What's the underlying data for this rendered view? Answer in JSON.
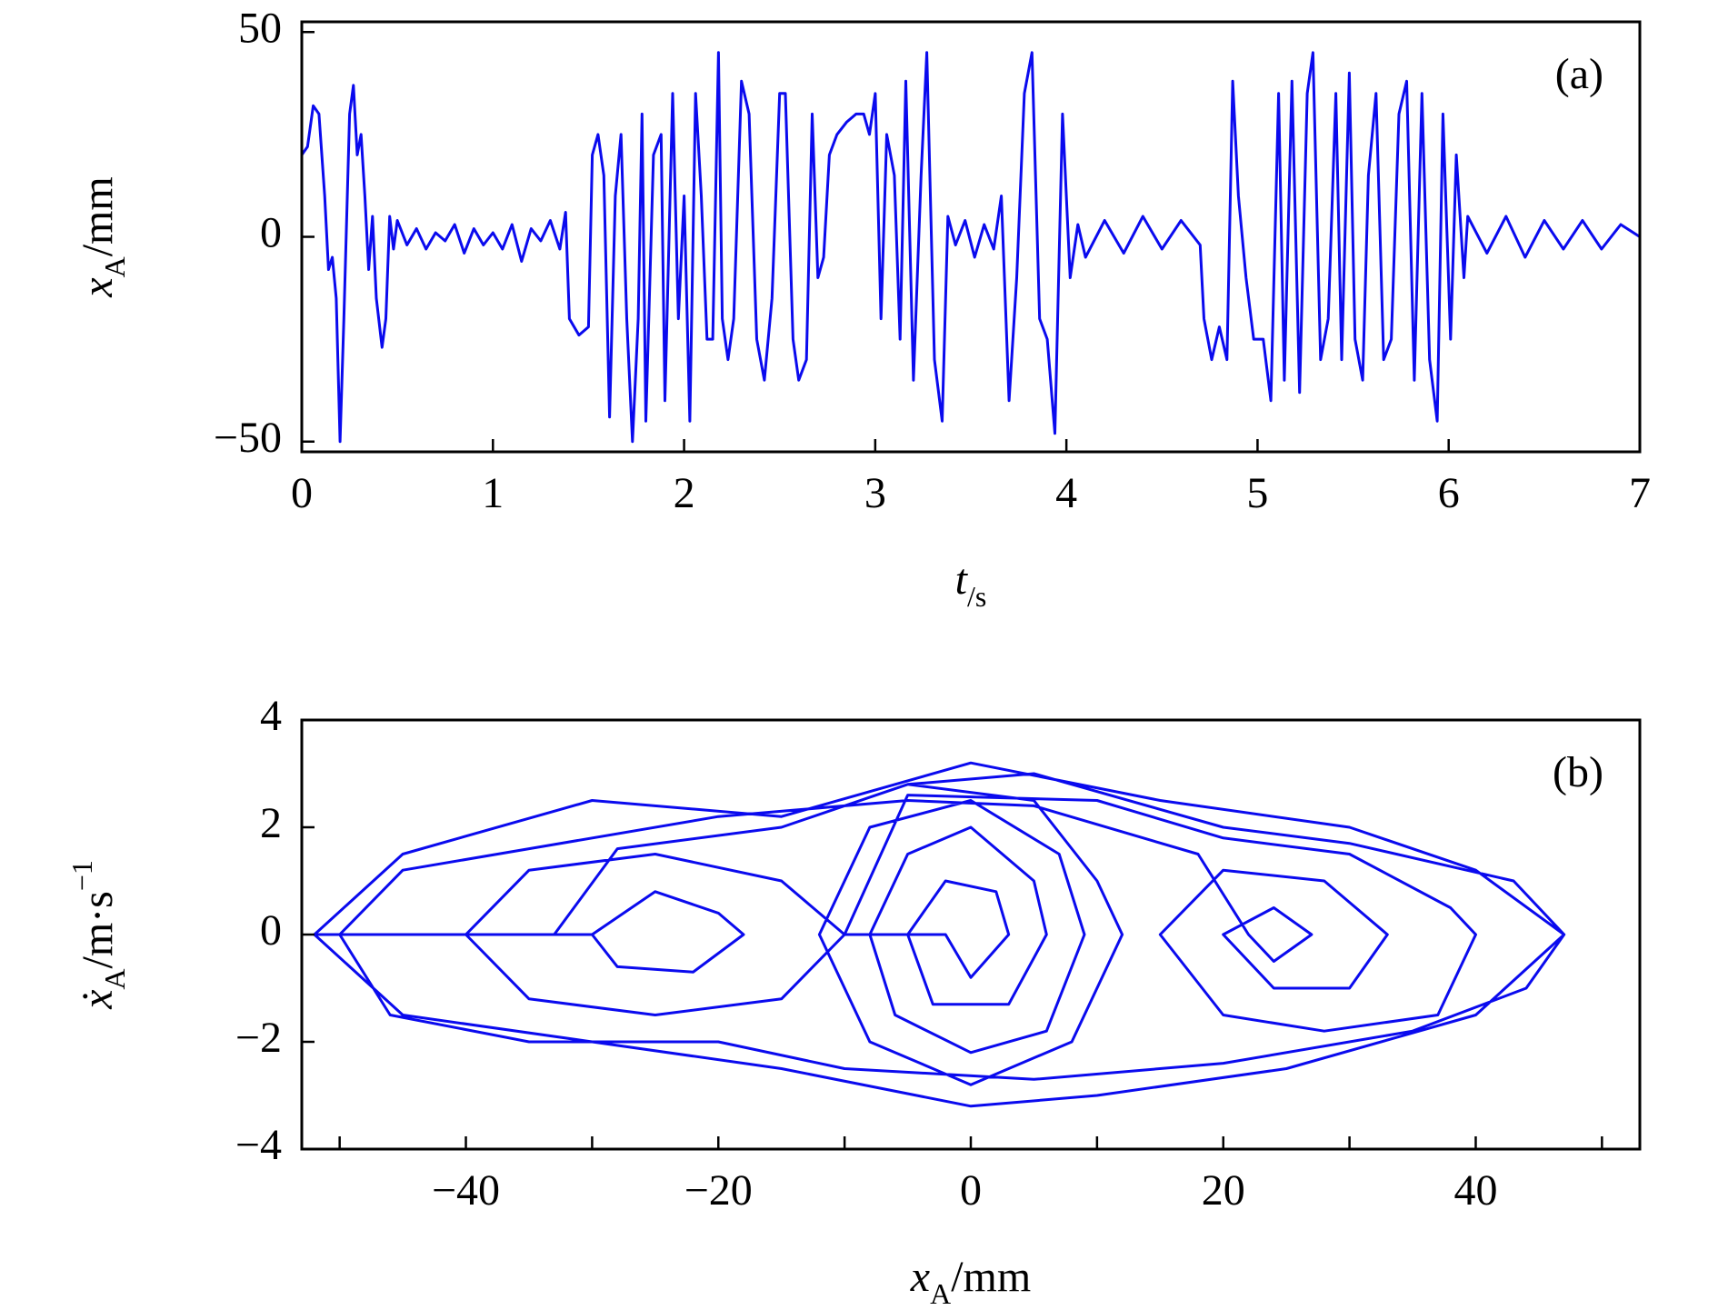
{
  "chart_data": [
    {
      "type": "line",
      "panel_label": "(a)",
      "x_label": [
        "t",
        "/s"
      ],
      "y_label": [
        "x",
        "A",
        "/mm"
      ],
      "color": "#0a0aee",
      "xlim": [
        0,
        7
      ],
      "xticks": [
        0,
        1,
        2,
        3,
        4,
        5,
        6,
        7
      ],
      "ylim": [
        -52.5,
        52.5
      ],
      "yticks": [
        {
          "value": -50,
          "label": "−50"
        },
        0,
        50
      ],
      "x": [
        0,
        0.03,
        0.06,
        0.09,
        0.12,
        0.14,
        0.16,
        0.18,
        0.2,
        0.22,
        0.25,
        0.27,
        0.29,
        0.31,
        0.33,
        0.35,
        0.37,
        0.39,
        0.42,
        0.44,
        0.46,
        0.48,
        0.5,
        0.55,
        0.6,
        0.65,
        0.7,
        0.75,
        0.8,
        0.85,
        0.9,
        0.95,
        1.0,
        1.05,
        1.1,
        1.15,
        1.2,
        1.25,
        1.3,
        1.35,
        1.38,
        1.4,
        1.45,
        1.5,
        1.52,
        1.55,
        1.58,
        1.61,
        1.64,
        1.67,
        1.7,
        1.73,
        1.76,
        1.78,
        1.8,
        1.84,
        1.88,
        1.9,
        1.94,
        1.97,
        2.0,
        2.03,
        2.06,
        2.09,
        2.12,
        2.15,
        2.18,
        2.2,
        2.23,
        2.26,
        2.3,
        2.34,
        2.38,
        2.42,
        2.46,
        2.5,
        2.53,
        2.57,
        2.6,
        2.64,
        2.67,
        2.7,
        2.73,
        2.76,
        2.8,
        2.85,
        2.9,
        2.94,
        2.97,
        3.0,
        3.03,
        3.06,
        3.1,
        3.13,
        3.16,
        3.2,
        3.24,
        3.27,
        3.31,
        3.35,
        3.38,
        3.42,
        3.47,
        3.52,
        3.57,
        3.62,
        3.66,
        3.7,
        3.74,
        3.78,
        3.82,
        3.86,
        3.9,
        3.94,
        3.98,
        4.02,
        4.06,
        4.1,
        4.2,
        4.3,
        4.4,
        4.5,
        4.6,
        4.7,
        4.72,
        4.76,
        4.8,
        4.84,
        4.87,
        4.9,
        4.94,
        4.98,
        5.03,
        5.07,
        5.11,
        5.14,
        5.18,
        5.22,
        5.26,
        5.29,
        5.33,
        5.37,
        5.41,
        5.44,
        5.48,
        5.51,
        5.55,
        5.58,
        5.62,
        5.66,
        5.7,
        5.74,
        5.78,
        5.82,
        5.86,
        5.9,
        5.94,
        5.97,
        6.01,
        6.04,
        6.08,
        6.1,
        6.2,
        6.3,
        6.4,
        6.5,
        6.6,
        6.7,
        6.8,
        6.9,
        7.0
      ],
      "values": [
        20,
        22,
        32,
        30,
        10,
        -8,
        -5,
        -15,
        -50,
        -20,
        30,
        37,
        20,
        25,
        10,
        -8,
        5,
        -15,
        -27,
        -20,
        5,
        -3,
        4,
        -2,
        2,
        -3,
        1,
        -1,
        3,
        -4,
        2,
        -2,
        1,
        -3,
        3,
        -6,
        2,
        -1,
        4,
        -3,
        6,
        -20,
        -24,
        -22,
        20,
        25,
        15,
        -44,
        10,
        25,
        -20,
        -50,
        -20,
        30,
        -45,
        20,
        25,
        -40,
        35,
        -20,
        10,
        -45,
        35,
        10,
        -25,
        -25,
        45,
        -20,
        -30,
        -20,
        38,
        30,
        -25,
        -35,
        -15,
        35,
        35,
        -25,
        -35,
        -30,
        30,
        -10,
        -5,
        20,
        25,
        28,
        30,
        30,
        25,
        35,
        -20,
        25,
        15,
        -25,
        38,
        -35,
        15,
        45,
        -30,
        -45,
        5,
        -2,
        4,
        -5,
        3,
        -3,
        10,
        -40,
        -10,
        35,
        45,
        -20,
        -25,
        -48,
        30,
        -10,
        3,
        -5,
        4,
        -4,
        5,
        -3,
        4,
        -2,
        -20,
        -30,
        -22,
        -30,
        38,
        10,
        -10,
        -25,
        -25,
        -40,
        35,
        -35,
        38,
        -38,
        35,
        45,
        -30,
        -20,
        35,
        -30,
        40,
        -25,
        -35,
        15,
        35,
        -30,
        -25,
        30,
        38,
        -35,
        35,
        -30,
        -45,
        30,
        -25,
        20,
        -10,
        5,
        -4,
        5,
        -5,
        4,
        -3,
        4,
        -3,
        3,
        0
      ]
    },
    {
      "type": "line",
      "panel_label": "(b)",
      "x_label": [
        "x",
        "A",
        "/mm"
      ],
      "y_label": [
        "ẋ",
        "A",
        "/m·s",
        "−1"
      ],
      "color": "#0a0aee",
      "xlim": [
        -53,
        53
      ],
      "xticks": [
        {
          "value": -40,
          "label": "−40"
        },
        {
          "value": -20,
          "label": "−20"
        },
        0,
        20,
        40
      ],
      "xminor_ticks": [
        -50,
        -30,
        -10,
        10,
        30,
        50
      ],
      "ylim": [
        -4,
        4
      ],
      "yticks": [
        {
          "value": -4,
          "label": "−4"
        },
        {
          "value": -2,
          "label": "−2"
        },
        0,
        2,
        4
      ],
      "x": [
        -52,
        -45,
        -30,
        -15,
        0,
        15,
        30,
        40,
        47,
        40,
        25,
        10,
        0,
        -15,
        -30,
        -45,
        -52,
        -40,
        -35,
        -25,
        -15,
        -10,
        -15,
        -25,
        -35,
        -40,
        -30,
        -25,
        -20,
        -18,
        -22,
        -28,
        -30,
        -33,
        -28,
        -15,
        -5,
        5,
        10,
        12,
        8,
        0,
        -8,
        -12,
        -8,
        0,
        7,
        9,
        6,
        0,
        -6,
        -8,
        -5,
        0,
        5,
        6,
        3,
        -3,
        -5,
        -2,
        2,
        3,
        0,
        -2,
        -10,
        -5,
        10,
        20,
        30,
        38,
        40,
        37,
        28,
        20,
        15,
        20,
        28,
        33,
        30,
        24,
        20,
        24,
        27,
        24,
        22,
        18,
        5,
        -5,
        -20,
        -35,
        -45,
        -50,
        -46,
        -35,
        -20,
        -10,
        5,
        20,
        35,
        44,
        47,
        43,
        30,
        20,
        5,
        -5
      ],
      "values": [
        0,
        1.5,
        2.5,
        2.2,
        3.2,
        2.5,
        2,
        1.2,
        0,
        -1.5,
        -2.5,
        -3,
        -3.2,
        -2.5,
        -2,
        -1.5,
        0,
        0,
        1.2,
        1.5,
        1,
        0,
        -1.2,
        -1.5,
        -1.2,
        0,
        0,
        0.8,
        0.4,
        0,
        -0.7,
        -0.6,
        0,
        0,
        1.6,
        2,
        2.8,
        2.5,
        1,
        0,
        -2,
        -2.8,
        -2,
        0,
        2,
        2.5,
        1.5,
        0,
        -1.8,
        -2.2,
        -1.5,
        0,
        1.5,
        2,
        1,
        0,
        -1.3,
        -1.3,
        0,
        1,
        0.8,
        0,
        -0.8,
        0,
        0,
        2.6,
        2.5,
        1.8,
        1.5,
        0.5,
        0,
        -1.5,
        -1.8,
        -1.5,
        0,
        1.2,
        1,
        0,
        -1,
        -1,
        0,
        0.5,
        0,
        -0.5,
        0,
        1.5,
        2.4,
        2.5,
        2.2,
        1.6,
        1.2,
        0,
        -1.5,
        -2,
        -2,
        -2.5,
        -2.7,
        -2.4,
        -1.8,
        -1,
        0,
        1,
        1.7,
        2,
        3,
        2.8
      ]
    }
  ]
}
